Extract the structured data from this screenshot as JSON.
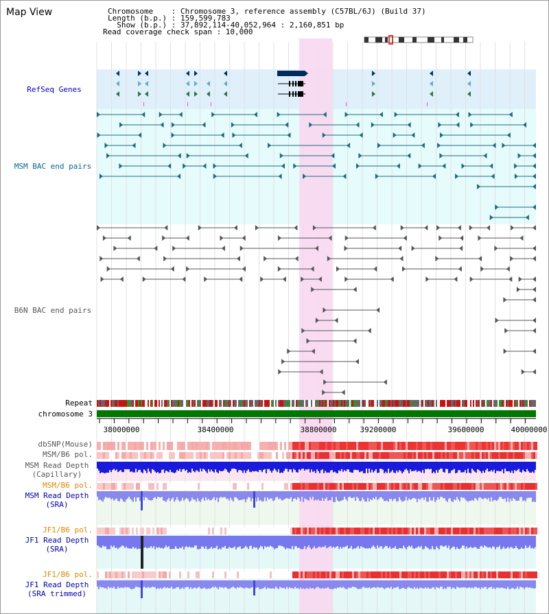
{
  "title": "Map View",
  "header": {
    "line1": "Chromosome    : Chromosome 3, reference assembly (C57BL/6J) (Build 37)",
    "line2": "Length (b.p.) : 159,599,783",
    "line3": "  Show (b.p.) : 37,892,114-40,052,964 : 2,160,851 bp",
    "line4": "Read coverage check span : 10,000"
  },
  "tracks": {
    "refseq": "RefSeq Genes",
    "msm_bac": "MSM BAC end pairs",
    "b6n_bac": "B6N BAC end pairs",
    "repeat": "Repeat",
    "chromosome": "chromosome 3",
    "dbsnp": "dbSNP(Mouse)",
    "msm_pol": "MSM/B6 pol.",
    "msm_depth_cap_1": "MSM Read Depth",
    "msm_depth_cap_2": "(Capillary)",
    "msm_pol2": "MSM/B6 pol.",
    "msm_depth_sra_1": "MSM Read Depth",
    "msm_depth_sra_2": "(SRA)",
    "jf1_pol": "JF1/B6 pol.",
    "jf1_depth_1": "JF1 Read Depth",
    "jf1_depth_2": "(SRA)",
    "jf1_pol2": "JF1/B6 pol.",
    "jf1_trim_1": "JF1 Read Depth",
    "jf1_trim_2": "(SRA trimmed)"
  },
  "axis": {
    "ticks": [
      "38000000",
      "38400000",
      "38800000",
      "39200000",
      "39600000",
      "40000000"
    ]
  },
  "colors": {
    "refseq_label": "#0000cc",
    "msm_label": "#006699",
    "b6n_label": "#555555",
    "orange_label": "#dd8800",
    "blue_label": "#0000aa",
    "highlight": "#f8d8f0",
    "chromosome_bar": "#007700"
  }
}
